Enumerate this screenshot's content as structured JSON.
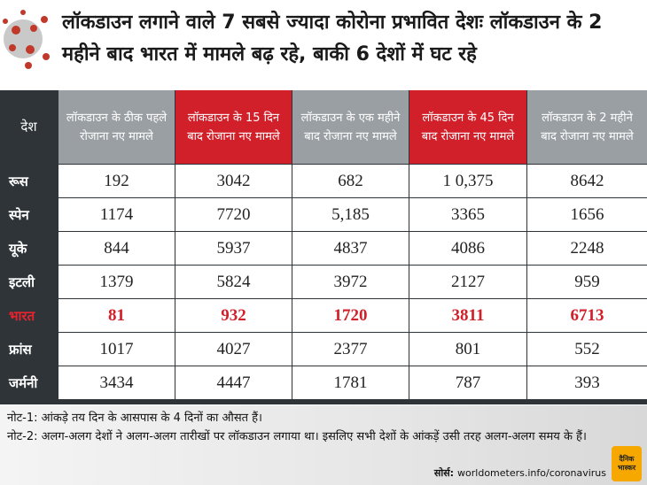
{
  "title": "लॉकडाउन लगाने वाले 7 सबसे ज्यादा कोरोना प्रभावित देशः लॉकडाउन के 2 महीने बाद भारत में मामले बढ़ रहे, बाकी 6 देशों में घट रहे",
  "table": {
    "country_header": "देश",
    "columns": [
      {
        "label": "लॉकडाउन के ठीक पहले रोजाना नए मामले",
        "style": "gray"
      },
      {
        "label": "लॉकडाउन के 15 दिन बाद रोजाना नए मामले",
        "style": "red"
      },
      {
        "label": "लॉकडाउन के एक महीने बाद रोजाना नए मामले",
        "style": "gray"
      },
      {
        "label": "लॉकडाउन के 45 दिन बाद रोजाना नए मामले",
        "style": "red"
      },
      {
        "label": "लॉकडाउन के 2 महीने बाद रोजाना नए मामले",
        "style": "gray"
      }
    ],
    "rows": [
      {
        "country": "रूस",
        "values": [
          "192",
          "3042",
          "682",
          "1 0,375",
          "8642"
        ],
        "highlight": false
      },
      {
        "country": "स्पेन",
        "values": [
          "1174",
          "7720",
          "5,185",
          "3365",
          "1656"
        ],
        "highlight": false
      },
      {
        "country": "यूके",
        "values": [
          "844",
          "5937",
          "4837",
          "4086",
          "2248"
        ],
        "highlight": false
      },
      {
        "country": "इटली",
        "values": [
          "1379",
          "5824",
          "3972",
          "2127",
          "959"
        ],
        "highlight": false
      },
      {
        "country": "भारत",
        "values": [
          "81",
          "932",
          "1720",
          "3811",
          "6713"
        ],
        "highlight": true
      },
      {
        "country": "फ्रांस",
        "values": [
          "1017",
          "4027",
          "2377",
          "801",
          "552"
        ],
        "highlight": false
      },
      {
        "country": "जर्मनी",
        "values": [
          "3434",
          "4447",
          "1781",
          "787",
          "393"
        ],
        "highlight": false
      }
    ]
  },
  "notes": {
    "note1": "नोट-1: आंकड़े तय दिन के आसपास के 4 दिनों का औसत हैं।",
    "note2": "नोट-2: अलग-अलग देशों ने अलग-अलग तारीखों पर लॉकडाउन लगाया था। इसलिए सभी देशों के आंकड़ें उसी तरह अलग-अलग समय के हैं।"
  },
  "source": {
    "label": "सोर्स:",
    "value": "worldometers.info/coronavirus"
  },
  "logo": {
    "line1": "दैनिक",
    "line2": "भास्कर"
  },
  "colors": {
    "red": "#d1202a",
    "gray": "#9a9fa3",
    "dark": "#2e3438"
  }
}
